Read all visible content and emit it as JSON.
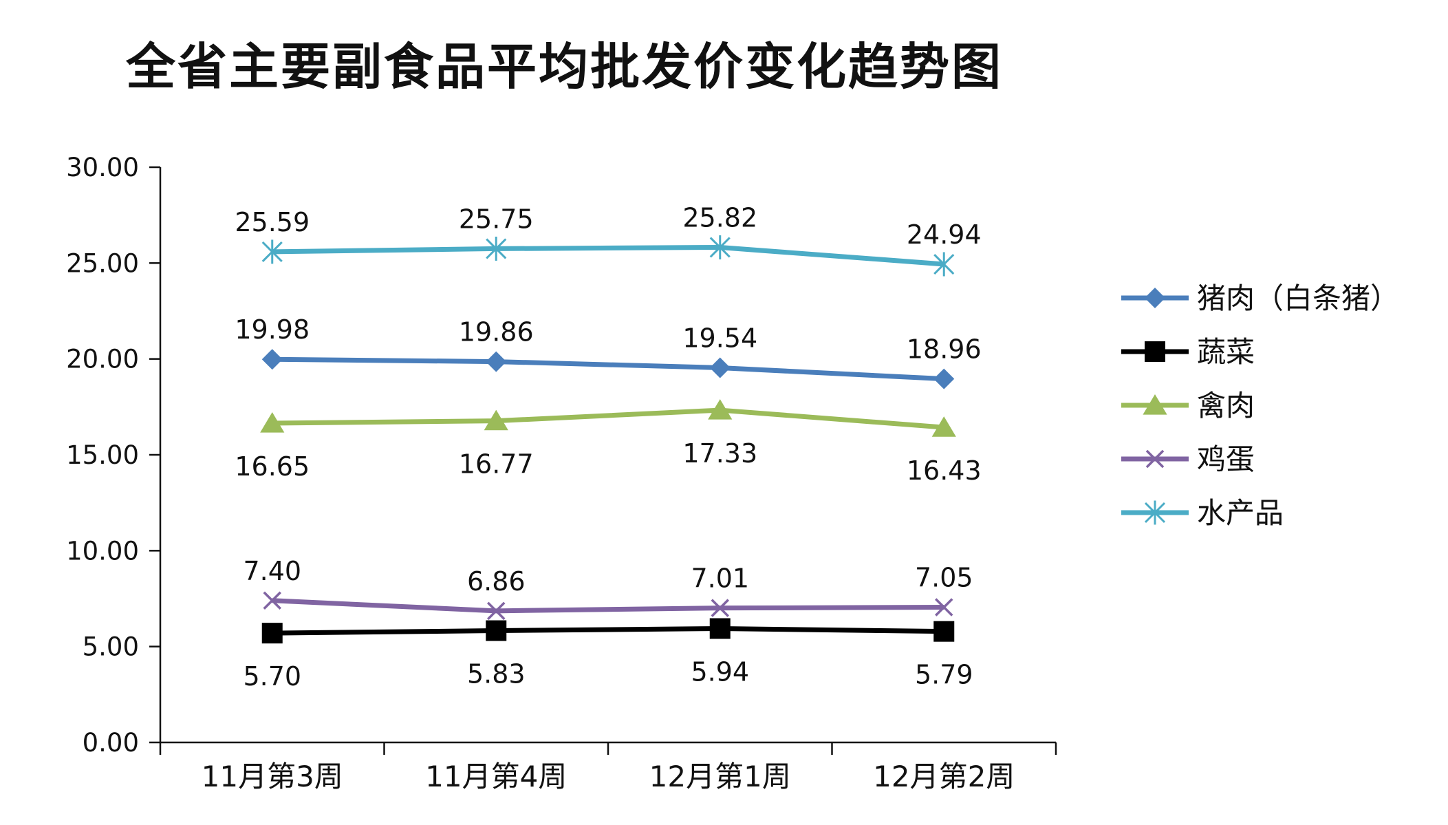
{
  "title": "全省主要副食品平均批发价变化趋势图",
  "chart_data": {
    "type": "line",
    "title": "全省主要副食品平均批发价变化趋势图",
    "categories": [
      "11月第3周",
      "11月第4周",
      "12月第1周",
      "12月第2周"
    ],
    "ylim": [
      0,
      30
    ],
    "yticks": [
      "0.00",
      "5.00",
      "10.00",
      "15.00",
      "20.00",
      "25.00",
      "30.00"
    ],
    "grid": false,
    "legend_position": "right",
    "series": [
      {
        "name": "猪肉（白条猪）",
        "values": [
          19.98,
          19.86,
          19.54,
          18.96
        ],
        "labels": [
          "19.98",
          "19.86",
          "19.54",
          "18.96"
        ],
        "color": "#4a7ebb",
        "marker": "diamond",
        "label_pos": "above"
      },
      {
        "name": "蔬菜",
        "values": [
          5.7,
          5.83,
          5.94,
          5.79
        ],
        "labels": [
          "5.70",
          "5.83",
          "5.94",
          "5.79"
        ],
        "color": "#000000",
        "marker": "square",
        "label_pos": "below"
      },
      {
        "name": "禽肉",
        "values": [
          16.65,
          16.77,
          17.33,
          16.43
        ],
        "labels": [
          "16.65",
          "16.77",
          "17.33",
          "16.43"
        ],
        "color": "#9bbb59",
        "marker": "triangle",
        "label_pos": "below"
      },
      {
        "name": "鸡蛋",
        "values": [
          7.4,
          6.86,
          7.01,
          7.05
        ],
        "labels": [
          "7.40",
          "6.86",
          "7.01",
          "7.05"
        ],
        "color": "#8064a2",
        "marker": "x",
        "label_pos": "above"
      },
      {
        "name": "水产品",
        "values": [
          25.59,
          25.75,
          25.82,
          24.94
        ],
        "labels": [
          "25.59",
          "25.75",
          "25.82",
          "24.94"
        ],
        "color": "#4bacc6",
        "marker": "star",
        "label_pos": "above"
      }
    ]
  }
}
